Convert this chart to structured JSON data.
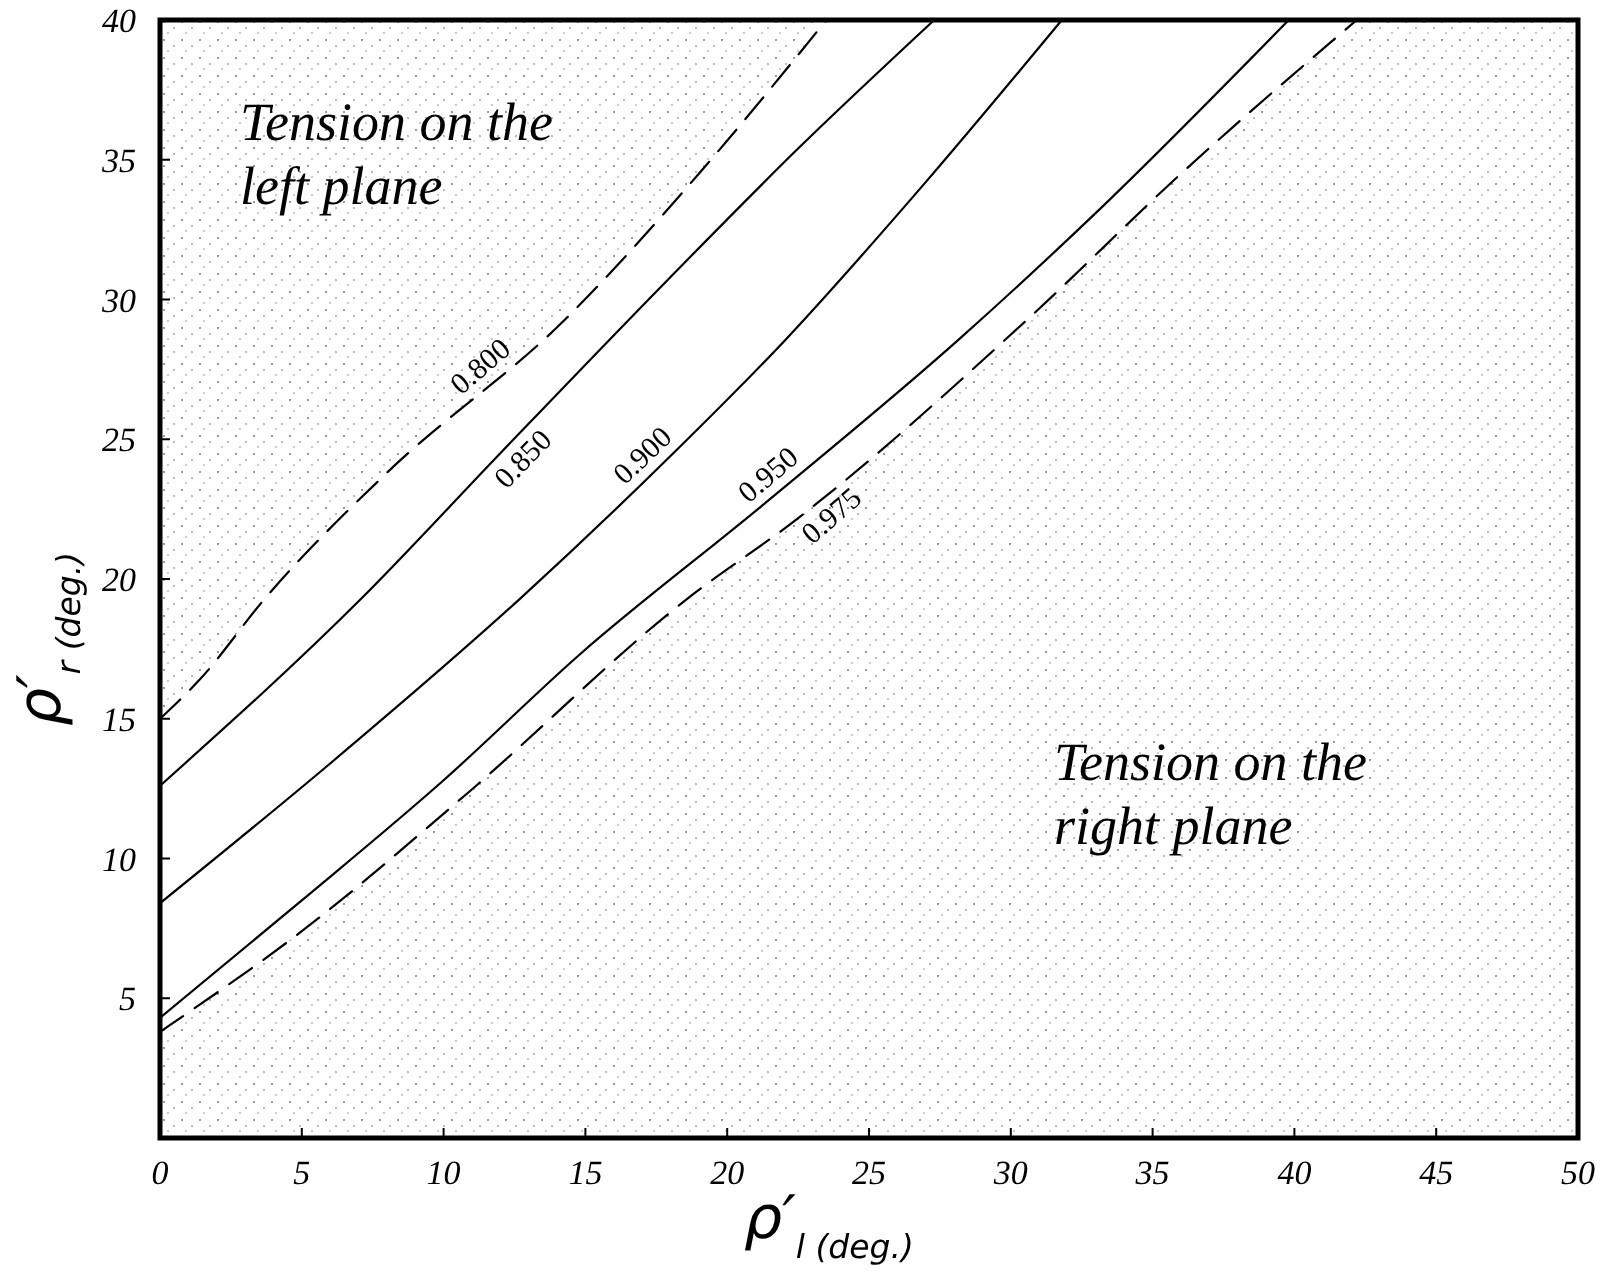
{
  "chart_data": {
    "type": "line",
    "xlabel": "ρ′$_{l (deg.)}$",
    "ylabel": "ρ′$_{r (deg.)}$",
    "xlim": [
      0,
      50
    ],
    "ylim": [
      0,
      40
    ],
    "xticks": [
      0,
      5,
      10,
      15,
      20,
      25,
      30,
      35,
      40,
      45,
      50
    ],
    "yticks": [
      {
        "value": 0,
        "label": null
      },
      5,
      10,
      15,
      20,
      25,
      30,
      35,
      40
    ],
    "grid": false,
    "bands": [
      {
        "axis": "x",
        "from": 42.2,
        "to": 50
      }
    ],
    "series": [
      {
        "name": "0.800",
        "color": "#000000",
        "line_style": "dashed",
        "x": [
          0,
          1.4,
          3.7,
          8,
          14.3,
          19,
          23.5
        ],
        "values": [
          15,
          16.4,
          19.3,
          23.8,
          29.3,
          34.5,
          40
        ]
      },
      {
        "name": "0.850",
        "color": "#000000",
        "line_style": "solid",
        "x": [
          0,
          7.1,
          12,
          17.9,
          22.5,
          27.3
        ],
        "values": [
          12.6,
          19.3,
          24.5,
          30.7,
          35.4,
          40
        ]
      },
      {
        "name": "0.900",
        "color": "#000000",
        "line_style": "solid",
        "x": [
          0,
          6,
          12.7,
          18,
          22,
          27,
          31.8
        ],
        "values": [
          8.4,
          13.4,
          19.3,
          24.4,
          28.5,
          34.2,
          40
        ]
      },
      {
        "name": "0.950",
        "color": "#000000",
        "line_style": "solid",
        "x": [
          0,
          5,
          10,
          14.8,
          21.2,
          28.2,
          33,
          39.8
        ],
        "values": [
          4.3,
          8.5,
          12.8,
          17.3,
          22.6,
          28.6,
          33.1,
          40
        ]
      },
      {
        "name": "0.975",
        "type": "area",
        "color": "#000000",
        "line_style": "dashed",
        "x": [
          0,
          5,
          10.8,
          18.6,
          22.4,
          30.6,
          36,
          42.2
        ],
        "values": [
          3.8,
          7.4,
          12.3,
          19.3,
          22.1,
          29.3,
          34.5,
          40
        ]
      }
    ],
    "annotations": [
      "Tension on the left plane",
      "Tension on the right plane"
    ]
  }
}
